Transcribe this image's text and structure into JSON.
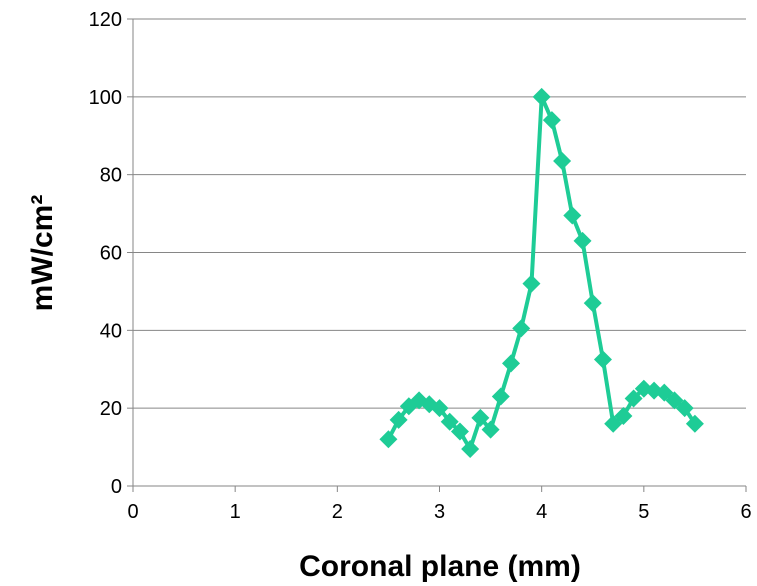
{
  "chart_data": {
    "type": "scatter",
    "xlabel": "Coronal plane (mm)",
    "ylabel": "mW/cm²",
    "xlim": [
      0,
      6
    ],
    "ylim": [
      0,
      120
    ],
    "x_ticks": [
      "0",
      "1",
      "2",
      "3",
      "4",
      "5",
      "6"
    ],
    "y_ticks": [
      "0",
      "20",
      "40",
      "60",
      "80",
      "100",
      "120"
    ],
    "grid": "horizontal",
    "legend": "none",
    "series": [
      {
        "color": "#1ecc96",
        "marker": "diamond",
        "line": true,
        "points": [
          {
            "x": 2.5,
            "y": 12
          },
          {
            "x": 2.6,
            "y": 17
          },
          {
            "x": 2.7,
            "y": 20.5
          },
          {
            "x": 2.8,
            "y": 22
          },
          {
            "x": 2.9,
            "y": 21
          },
          {
            "x": 3.0,
            "y": 20
          },
          {
            "x": 3.1,
            "y": 16.5
          },
          {
            "x": 3.2,
            "y": 14
          },
          {
            "x": 3.3,
            "y": 9.5
          },
          {
            "x": 3.4,
            "y": 17.5
          },
          {
            "x": 3.5,
            "y": 14.5
          },
          {
            "x": 3.6,
            "y": 23
          },
          {
            "x": 3.7,
            "y": 31.5
          },
          {
            "x": 3.8,
            "y": 40.5
          },
          {
            "x": 3.9,
            "y": 52
          },
          {
            "x": 4.0,
            "y": 100
          },
          {
            "x": 4.1,
            "y": 94
          },
          {
            "x": 4.2,
            "y": 83.5
          },
          {
            "x": 4.3,
            "y": 69.5
          },
          {
            "x": 4.4,
            "y": 63
          },
          {
            "x": 4.5,
            "y": 47
          },
          {
            "x": 4.6,
            "y": 32.5
          },
          {
            "x": 4.7,
            "y": 16
          },
          {
            "x": 4.8,
            "y": 18
          },
          {
            "x": 4.9,
            "y": 22.5
          },
          {
            "x": 5.0,
            "y": 25
          },
          {
            "x": 5.1,
            "y": 24.5
          },
          {
            "x": 5.2,
            "y": 24
          },
          {
            "x": 5.3,
            "y": 22
          },
          {
            "x": 5.4,
            "y": 20
          },
          {
            "x": 5.5,
            "y": 16
          }
        ]
      }
    ]
  }
}
